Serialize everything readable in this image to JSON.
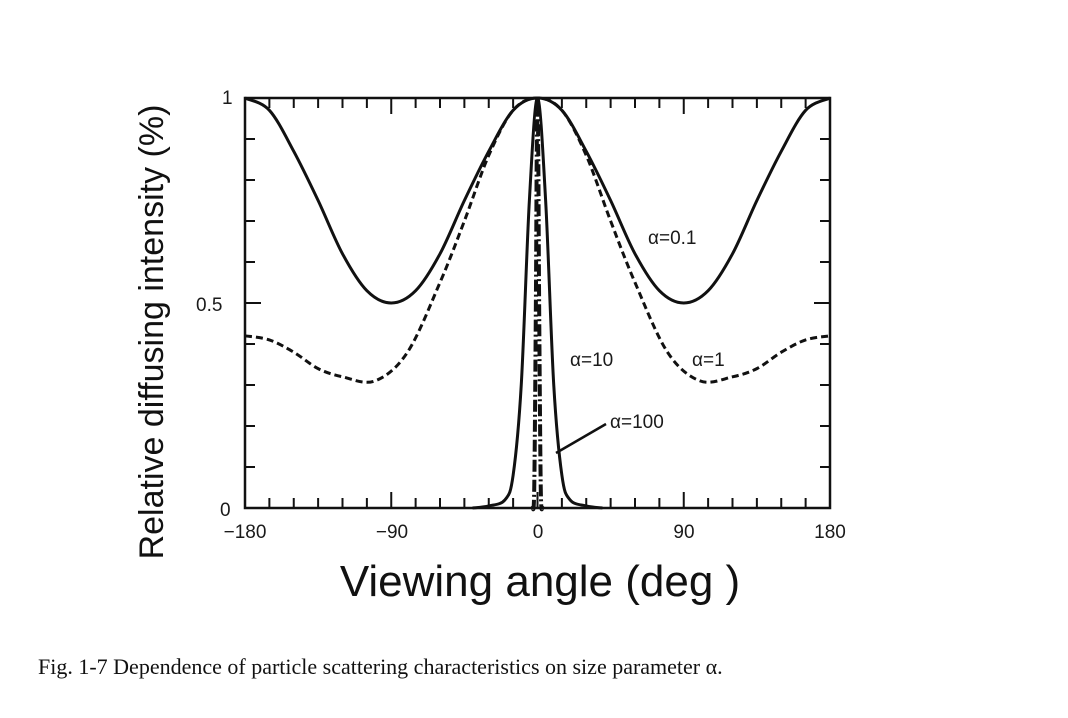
{
  "caption": "Fig. 1-7    Dependence of particle scattering characteristics on size parameter α.",
  "chart_data": {
    "type": "line",
    "xlabel": "Viewing angle (deg )",
    "ylabel": "Relative diffusing intensity (%)",
    "xlim": [
      -180,
      180
    ],
    "ylim": [
      0,
      1
    ],
    "xticks": [
      -180,
      -90,
      0,
      90,
      180
    ],
    "xtick_labels": [
      "−180",
      "−90",
      "0",
      "90",
      "180"
    ],
    "yticks": [
      0,
      0.5,
      1
    ],
    "ytick_labels": [
      "0",
      "0.5",
      "1"
    ],
    "grid": false,
    "series": [
      {
        "name": "α=0.1",
        "style": "solid",
        "color": "#111111",
        "x": [
          -180,
          -165,
          -150,
          -135,
          -120,
          -105,
          -90,
          -75,
          -60,
          -45,
          -30,
          -15,
          0,
          15,
          30,
          45,
          60,
          75,
          90,
          105,
          120,
          135,
          150,
          165,
          180
        ],
        "y": [
          1.0,
          0.97,
          0.87,
          0.75,
          0.62,
          0.53,
          0.5,
          0.53,
          0.62,
          0.75,
          0.87,
          0.97,
          1.0,
          0.97,
          0.87,
          0.75,
          0.62,
          0.53,
          0.5,
          0.53,
          0.62,
          0.75,
          0.87,
          0.97,
          1.0
        ]
      },
      {
        "name": "α=1",
        "style": "dashed",
        "color": "#111111",
        "x": [
          -180,
          -165,
          -150,
          -135,
          -120,
          -100,
          -80,
          -60,
          -45,
          -30,
          -15,
          0,
          15,
          30,
          45,
          60,
          80,
          100,
          120,
          135,
          150,
          165,
          180
        ],
        "y": [
          0.42,
          0.41,
          0.38,
          0.34,
          0.32,
          0.31,
          0.38,
          0.55,
          0.7,
          0.86,
          0.97,
          1.0,
          0.97,
          0.86,
          0.7,
          0.55,
          0.38,
          0.31,
          0.32,
          0.34,
          0.38,
          0.41,
          0.42
        ]
      },
      {
        "name": "α=10",
        "style": "solid",
        "color": "#111111",
        "x": [
          -40,
          -30,
          -20,
          -15,
          -10,
          -5,
          0,
          5,
          10,
          15,
          20,
          30,
          40
        ],
        "y": [
          0.0,
          0.005,
          0.02,
          0.08,
          0.3,
          0.75,
          1.0,
          0.75,
          0.3,
          0.08,
          0.02,
          0.005,
          0.0
        ]
      },
      {
        "name": "α=100",
        "style": "dash-dot",
        "color": "#111111",
        "x": [
          -3,
          -2,
          -1,
          -0.5,
          0,
          0.5,
          1,
          2,
          3
        ],
        "y": [
          0.0,
          0.05,
          0.5,
          0.85,
          1.0,
          0.85,
          0.5,
          0.05,
          0.0
        ]
      }
    ]
  }
}
